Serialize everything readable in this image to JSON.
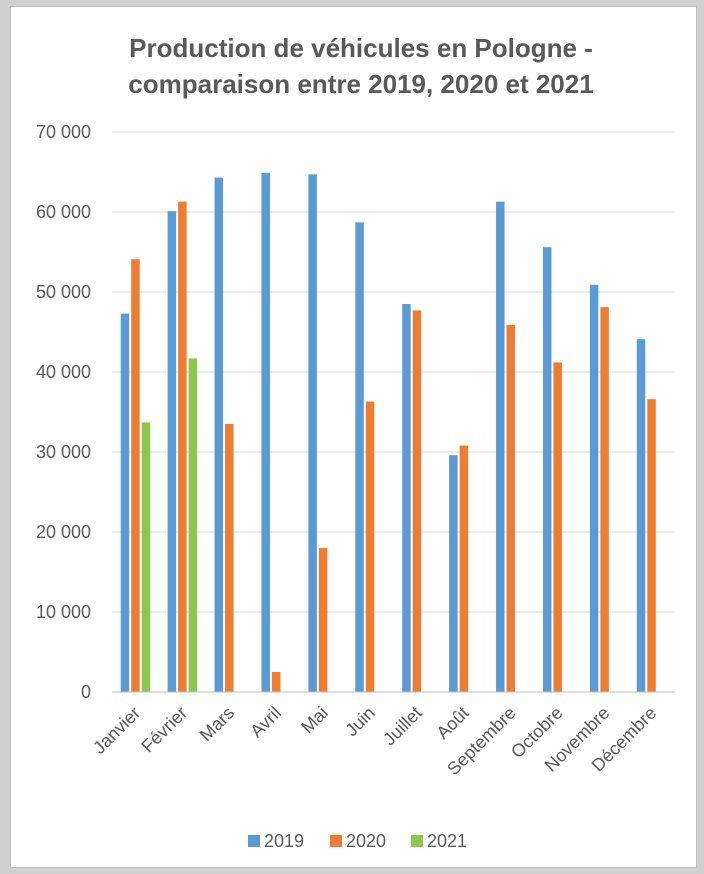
{
  "chart_data": {
    "type": "bar",
    "title": "Production de véhicules en Pologne - comparaison entre 2019, 2020 et 2021",
    "title_lines": [
      "Production de véhicules en Pologne -",
      "comparaison entre 2019, 2020 et 2021"
    ],
    "categories": [
      "Janvier",
      "Février",
      "Mars",
      "Avril",
      "Mai",
      "Juin",
      "Juillet",
      "Août",
      "Septembre",
      "Octobre",
      "Novembre",
      "Décembre"
    ],
    "series": [
      {
        "name": "2019",
        "color": "#5b9bd5",
        "values": [
          47300,
          60100,
          64300,
          64900,
          64700,
          58700,
          48500,
          29600,
          61300,
          55600,
          50900,
          44100
        ]
      },
      {
        "name": "2020",
        "color": "#ed7d31",
        "values": [
          54100,
          61300,
          33500,
          2500,
          18000,
          36300,
          47700,
          30800,
          45900,
          41200,
          48100,
          36600
        ]
      },
      {
        "name": "2021",
        "color": "#8cc84b",
        "values": [
          33700,
          41700,
          null,
          null,
          null,
          null,
          null,
          null,
          null,
          null,
          null,
          null
        ]
      }
    ],
    "xlabel": "",
    "ylabel": "",
    "ylim": [
      0,
      70000
    ],
    "y_ticks": [
      0,
      10000,
      20000,
      30000,
      40000,
      50000,
      60000,
      70000
    ],
    "y_tick_labels": [
      "0",
      "10 000",
      "20 000",
      "30 000",
      "40 000",
      "50 000",
      "60 000",
      "70 000"
    ],
    "grid": true,
    "legend_position": "bottom"
  }
}
